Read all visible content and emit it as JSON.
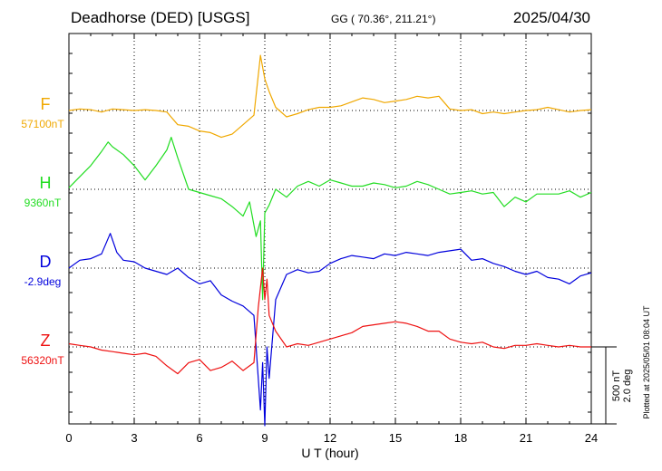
{
  "header": {
    "station": "Deadhorse (DED)  [USGS]",
    "coords": "GG ( 70.36°, 211.21°)",
    "date": "2025/04/30"
  },
  "plotted_note": "Plotted at 2025/05/01 08:04 UT",
  "chart_data": {
    "type": "line",
    "xlabel": "U T (hour)",
    "xlim": [
      0,
      24
    ],
    "x_ticks": [
      "0",
      "3",
      "6",
      "9",
      "12",
      "15",
      "18",
      "21",
      "24"
    ],
    "scale_bar": [
      "500 nT",
      "2.0 deg"
    ],
    "grid": true,
    "series": [
      {
        "name": "F",
        "baseline_label": "57100nT",
        "color": "#f0a800",
        "x": [
          0,
          0.5,
          1.0,
          1.5,
          2.0,
          2.5,
          3.0,
          3.5,
          4.0,
          4.5,
          5.0,
          5.5,
          6.0,
          6.5,
          7.0,
          7.5,
          8.0,
          8.5,
          8.8,
          9.0,
          9.2,
          9.5,
          10.0,
          10.5,
          11.0,
          11.5,
          12.0,
          12.5,
          13.0,
          13.5,
          14.0,
          14.5,
          15.0,
          15.5,
          16.0,
          16.5,
          17.0,
          17.5,
          18.0,
          18.5,
          19.0,
          19.5,
          20.0,
          20.5,
          21.0,
          21.5,
          22.0,
          22.5,
          23.0,
          23.5,
          24.0
        ],
        "y": [
          0,
          10,
          5,
          -10,
          10,
          5,
          0,
          5,
          0,
          -10,
          -90,
          -100,
          -130,
          -140,
          -170,
          -150,
          -90,
          -30,
          350,
          200,
          120,
          20,
          -40,
          -20,
          5,
          20,
          20,
          30,
          55,
          80,
          70,
          50,
          60,
          70,
          90,
          80,
          90,
          10,
          0,
          5,
          -20,
          -10,
          -20,
          -10,
          0,
          5,
          20,
          5,
          -10,
          0,
          5
        ]
      },
      {
        "name": "H",
        "baseline_label": "9360nT",
        "color": "#22dd22",
        "x": [
          0,
          0.5,
          1.0,
          1.5,
          1.8,
          2.0,
          2.5,
          3.0,
          3.5,
          4.0,
          4.5,
          4.7,
          5.0,
          5.5,
          6.0,
          6.5,
          7.0,
          7.5,
          8.0,
          8.3,
          8.6,
          8.8,
          8.9,
          9.0,
          9.2,
          9.5,
          10.0,
          10.5,
          11.0,
          11.5,
          12.0,
          12.5,
          13.0,
          13.5,
          14.0,
          14.5,
          15.0,
          15.5,
          16.0,
          16.5,
          17.0,
          17.5,
          18.0,
          18.5,
          19.0,
          19.5,
          20.0,
          20.5,
          21.0,
          21.5,
          22.0,
          22.5,
          23.0,
          23.5,
          24.0
        ],
        "y": [
          10,
          80,
          150,
          240,
          300,
          270,
          220,
          150,
          60,
          150,
          250,
          330,
          200,
          0,
          -20,
          -40,
          -60,
          -110,
          -170,
          -80,
          -300,
          -200,
          -700,
          -150,
          -100,
          0,
          -50,
          20,
          50,
          20,
          60,
          40,
          20,
          20,
          40,
          30,
          10,
          20,
          50,
          30,
          0,
          -30,
          -20,
          -10,
          -30,
          -20,
          -110,
          -50,
          -80,
          -30,
          -30,
          -30,
          -10,
          -50,
          -20
        ]
      },
      {
        "name": "D",
        "baseline_label": "-2.9deg",
        "color": "#0000dd",
        "x": [
          0,
          0.5,
          1.0,
          1.5,
          1.9,
          2.2,
          2.5,
          3.0,
          3.5,
          4.0,
          4.5,
          5.0,
          5.5,
          6.0,
          6.5,
          7.0,
          7.5,
          8.0,
          8.5,
          8.8,
          8.9,
          9.0,
          9.1,
          9.2,
          9.5,
          10.0,
          10.5,
          11.0,
          11.5,
          12.0,
          12.5,
          13.0,
          13.5,
          14.0,
          14.5,
          15.0,
          15.5,
          16.0,
          16.5,
          17.0,
          17.5,
          18.0,
          18.5,
          19.0,
          19.5,
          20.0,
          20.5,
          21.0,
          21.5,
          22.0,
          22.5,
          23.0,
          23.5,
          24.0
        ],
        "y": [
          0,
          50,
          60,
          90,
          220,
          100,
          50,
          40,
          0,
          -20,
          -40,
          0,
          -60,
          -100,
          -80,
          -170,
          -210,
          -240,
          -300,
          -900,
          -600,
          -1000,
          -500,
          -700,
          -200,
          -40,
          -10,
          -30,
          -20,
          30,
          60,
          80,
          70,
          60,
          90,
          80,
          100,
          90,
          80,
          100,
          110,
          120,
          50,
          60,
          30,
          10,
          -20,
          -40,
          -20,
          -60,
          -70,
          -100,
          -50,
          -30
        ]
      },
      {
        "name": "Z",
        "baseline_label": "56320nT",
        "color": "#ee1111",
        "x": [
          0,
          0.5,
          1.0,
          1.5,
          2.0,
          2.5,
          3.0,
          3.5,
          4.0,
          4.5,
          5.0,
          5.5,
          6.0,
          6.5,
          7.0,
          7.5,
          8.0,
          8.5,
          8.7,
          8.9,
          9.0,
          9.1,
          9.2,
          9.5,
          10.0,
          10.5,
          11.0,
          11.5,
          12.0,
          12.5,
          13.0,
          13.5,
          14.0,
          14.5,
          15.0,
          15.5,
          16.0,
          16.5,
          17.0,
          17.5,
          18.0,
          18.5,
          19.0,
          19.5,
          20.0,
          20.5,
          21.0,
          21.5,
          22.0,
          22.5,
          23.0,
          23.5,
          24.0
        ],
        "y": [
          20,
          10,
          0,
          -20,
          -30,
          -40,
          -50,
          -40,
          -60,
          -120,
          -170,
          -100,
          -80,
          -150,
          -130,
          -90,
          -150,
          -100,
          250,
          500,
          300,
          430,
          200,
          100,
          0,
          20,
          10,
          30,
          50,
          70,
          90,
          130,
          140,
          150,
          160,
          150,
          130,
          100,
          100,
          50,
          30,
          20,
          30,
          0,
          -10,
          10,
          10,
          20,
          10,
          0,
          10,
          0,
          0
        ]
      }
    ]
  }
}
